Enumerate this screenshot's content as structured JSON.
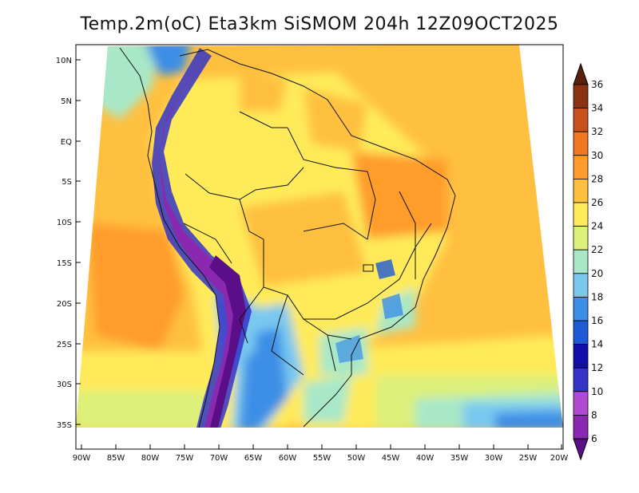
{
  "title": "Temp.2m(oC) Eta3km SiSMOM 204h 12Z09OCT2025",
  "lat_ticks": [
    "10N",
    "5N",
    "EQ",
    "5S",
    "10S",
    "15S",
    "20S",
    "25S",
    "30S",
    "35S"
  ],
  "lon_ticks": [
    "90W",
    "85W",
    "80W",
    "75W",
    "70W",
    "65W",
    "60W",
    "55W",
    "50W",
    "45W",
    "40W",
    "35W",
    "30W",
    "25W",
    "20W"
  ],
  "colorbar": {
    "labels": [
      "6",
      "8",
      "10",
      "12",
      "14",
      "16",
      "18",
      "20",
      "22",
      "24",
      "26",
      "28",
      "30",
      "32",
      "34",
      "36"
    ],
    "colors": [
      "#5a0e87",
      "#8a28b0",
      "#b04ad0",
      "#3434c8",
      "#1010a8",
      "#1e5ad6",
      "#3c8ee6",
      "#78c8f0",
      "#a8e8c8",
      "#dcf07a",
      "#ffeb5a",
      "#ffc040",
      "#ff9c2c",
      "#f07820",
      "#c8501a",
      "#8c3214",
      "#5a200e"
    ]
  }
}
